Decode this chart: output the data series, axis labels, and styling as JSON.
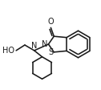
{
  "bg_color": "#ffffff",
  "line_color": "#1a1a1a",
  "line_width": 1.15,
  "figsize": [
    1.26,
    1.12
  ],
  "dpi": 100,
  "xlim": [
    0,
    126
  ],
  "ylim": [
    0,
    112
  ],
  "label_fs": 7.0
}
